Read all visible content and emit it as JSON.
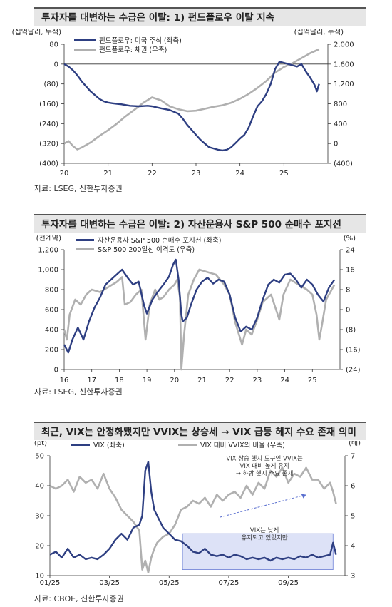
{
  "chart_data": [
    {
      "type": "line",
      "title": "투자자를 대변하는 수급은 이탈: 1) 펀드플로우 이탈 지속",
      "ylabel": "(십억달러, 누적)",
      "y2label": "(십억달러, 누적)",
      "source": "자료: LSEG, 신한투자증권",
      "x_ticks": [
        "20",
        "21",
        "22",
        "23",
        "24",
        "25"
      ],
      "x_range": [
        2020.0,
        2026.0
      ],
      "ylim": [
        -400,
        80
      ],
      "y_ticks": [
        "80",
        "0",
        "(80)",
        "(160)",
        "(240)",
        "(320)",
        "(400)"
      ],
      "y_tick_values": [
        80,
        0,
        -80,
        -160,
        -240,
        -320,
        -400
      ],
      "y2lim": [
        -400,
        2000
      ],
      "y2_ticks": [
        "2,000",
        "1,600",
        "1,200",
        "800",
        "400",
        "0",
        "(400)"
      ],
      "y2_tick_values": [
        2000,
        1600,
        1200,
        800,
        400,
        0,
        -400
      ],
      "legend_position": "top-left",
      "series": [
        {
          "name": "펀드플로우: 미국 주식 (좌축)",
          "axis": "left",
          "color": "#2e3f82",
          "x": [
            2020.0,
            2020.1,
            2020.2,
            2020.3,
            2020.4,
            2020.5,
            2020.6,
            2020.7,
            2020.8,
            2020.9,
            2021.0,
            2021.1,
            2021.2,
            2021.3,
            2021.5,
            2021.7,
            2021.9,
            2022.0,
            2022.2,
            2022.4,
            2022.6,
            2022.7,
            2022.8,
            2022.9,
            2023.0,
            2023.1,
            2023.2,
            2023.3,
            2023.4,
            2023.5,
            2023.6,
            2023.7,
            2023.8,
            2023.9,
            2024.0,
            2024.1,
            2024.2,
            2024.3,
            2024.4,
            2024.5,
            2024.6,
            2024.7,
            2024.8,
            2024.9,
            2025.0,
            2025.1,
            2025.2,
            2025.3,
            2025.4,
            2025.5,
            2025.6,
            2025.7,
            2025.75,
            2025.8
          ],
          "values": [
            0,
            -10,
            -25,
            -45,
            -70,
            -90,
            -110,
            -125,
            -140,
            -150,
            -155,
            -158,
            -160,
            -162,
            -168,
            -170,
            -168,
            -170,
            -178,
            -185,
            -200,
            -220,
            -245,
            -265,
            -285,
            -305,
            -320,
            -335,
            -340,
            -345,
            -348,
            -345,
            -335,
            -318,
            -300,
            -285,
            -255,
            -210,
            -170,
            -150,
            -120,
            -80,
            -20,
            10,
            5,
            0,
            -5,
            -10,
            0,
            -30,
            -55,
            -85,
            -110,
            -80
          ]
        },
        {
          "name": "펀드플로우: 채권 (우축)",
          "axis": "right",
          "color": "#b0b0b0",
          "x": [
            2020.0,
            2020.1,
            2020.2,
            2020.3,
            2020.4,
            2020.6,
            2020.8,
            2021.0,
            2021.2,
            2021.4,
            2021.6,
            2021.8,
            2022.0,
            2022.2,
            2022.4,
            2022.6,
            2022.8,
            2023.0,
            2023.2,
            2023.4,
            2023.6,
            2023.8,
            2024.0,
            2024.2,
            2024.4,
            2024.6,
            2024.8,
            2025.0,
            2025.2,
            2025.4,
            2025.6,
            2025.8
          ],
          "values": [
            0,
            50,
            -50,
            -120,
            -80,
            20,
            150,
            270,
            400,
            550,
            680,
            820,
            930,
            870,
            750,
            690,
            650,
            660,
            700,
            740,
            770,
            820,
            900,
            1000,
            1120,
            1260,
            1430,
            1540,
            1620,
            1720,
            1820,
            1900
          ]
        }
      ]
    },
    {
      "type": "line",
      "title": "투자자를 대변하는 수급은 이탈: 2) 자산운용사 S&P 500 순매수 포지션",
      "ylabel": "(천계약)",
      "y2label": "(%)",
      "source": "자료: LSEG, 신한투자증권",
      "x_ticks": [
        "16",
        "17",
        "18",
        "19",
        "20",
        "21",
        "22",
        "23",
        "24",
        "25"
      ],
      "x_range": [
        2016.0,
        2026.0
      ],
      "ylim": [
        0,
        1200
      ],
      "y_ticks": [
        "1,200",
        "1,000",
        "800",
        "600",
        "400",
        "200",
        "0"
      ],
      "y_tick_values": [
        1200,
        1000,
        800,
        600,
        400,
        200,
        0
      ],
      "y2lim": [
        -24,
        24
      ],
      "y2_ticks": [
        "24",
        "16",
        "8",
        "0",
        "(8)",
        "(16)",
        "(24)"
      ],
      "y2_tick_values": [
        24,
        16,
        8,
        0,
        -8,
        -16,
        -24
      ],
      "legend_position": "top-left",
      "series": [
        {
          "name": "자산운용사 S&P 500 순매수 포지션 (좌축)",
          "axis": "left",
          "color": "#2e3f82",
          "x": [
            2016.0,
            2016.15,
            2016.3,
            2016.5,
            2016.7,
            2016.9,
            2017.1,
            2017.3,
            2017.5,
            2017.7,
            2017.9,
            2018.1,
            2018.3,
            2018.5,
            2018.7,
            2018.9,
            2019.0,
            2019.2,
            2019.4,
            2019.6,
            2019.8,
            2019.95,
            2020.05,
            2020.15,
            2020.25,
            2020.3,
            2020.45,
            2020.6,
            2020.8,
            2021.0,
            2021.2,
            2021.4,
            2021.6,
            2021.8,
            2022.0,
            2022.2,
            2022.4,
            2022.6,
            2022.8,
            2023.0,
            2023.2,
            2023.4,
            2023.6,
            2023.8,
            2024.0,
            2024.2,
            2024.4,
            2024.6,
            2024.8,
            2025.0,
            2025.2,
            2025.4,
            2025.6,
            2025.8
          ],
          "values": [
            250,
            170,
            300,
            420,
            300,
            480,
            620,
            720,
            850,
            900,
            950,
            1000,
            920,
            850,
            880,
            640,
            560,
            700,
            780,
            850,
            930,
            1050,
            1100,
            900,
            550,
            480,
            520,
            650,
            800,
            880,
            920,
            860,
            900,
            880,
            750,
            520,
            380,
            430,
            400,
            520,
            700,
            850,
            900,
            870,
            950,
            960,
            900,
            820,
            900,
            850,
            750,
            680,
            820,
            900
          ]
        },
        {
          "name": "S&P 500 200일선 이격도 (우축)",
          "axis": "right",
          "color": "#b0b0b0",
          "x": [
            2016.0,
            2016.1,
            2016.2,
            2016.4,
            2016.6,
            2016.8,
            2017.0,
            2017.3,
            2017.6,
            2017.9,
            2018.1,
            2018.2,
            2018.4,
            2018.6,
            2018.8,
            2018.95,
            2019.1,
            2019.3,
            2019.45,
            2019.6,
            2019.8,
            2020.0,
            2020.1,
            2020.2,
            2020.25,
            2020.35,
            2020.5,
            2020.7,
            2020.9,
            2021.2,
            2021.5,
            2021.8,
            2022.0,
            2022.2,
            2022.45,
            2022.6,
            2022.8,
            2023.0,
            2023.2,
            2023.5,
            2023.8,
            2023.95,
            2024.2,
            2024.5,
            2024.8,
            2025.0,
            2025.15,
            2025.25,
            2025.35,
            2025.5,
            2025.7,
            2025.8
          ],
          "values": [
            -8,
            -12,
            -2,
            4,
            2,
            6,
            8,
            7,
            9,
            11,
            13,
            2,
            3,
            6,
            8,
            -12,
            2,
            8,
            4,
            5,
            8,
            10,
            12,
            5,
            -24,
            -10,
            6,
            12,
            16,
            15,
            14,
            10,
            6,
            -5,
            -14,
            -8,
            -10,
            -4,
            3,
            6,
            -4,
            6,
            12,
            10,
            8,
            6,
            -2,
            -12,
            -6,
            4,
            8,
            10
          ]
        }
      ]
    },
    {
      "type": "line",
      "title": "최근, VIX는 안정화됐지만 VVIX는 상승세 → VIX 급등 헤지 수요 존재 의미",
      "ylabel": "(pt)",
      "y2label": "(배)",
      "source": "자료: CBOE, 신한투자증권",
      "x_ticks": [
        "01/25",
        "03/25",
        "05/25",
        "07/25",
        "09/25"
      ],
      "x_tick_values": [
        0,
        2,
        4,
        6,
        8
      ],
      "x_range": [
        0,
        9.9
      ],
      "ylim": [
        10,
        50
      ],
      "y_ticks": [
        "50",
        "40",
        "30",
        "20",
        "10"
      ],
      "y_tick_values": [
        50,
        40,
        30,
        20,
        10
      ],
      "y2lim": [
        3,
        7
      ],
      "y2_ticks": [
        "7",
        "6",
        "5",
        "4",
        "3"
      ],
      "y2_tick_values": [
        7,
        6,
        5,
        4,
        3
      ],
      "legend_position": "top",
      "annotations": [
        {
          "text": "VIX 상승 헷지 도구인 VVIX는",
          "x": 7.2,
          "y": 48.5
        },
        {
          "text": "VIX 대비 높게 유지",
          "x": 7.2,
          "y": 46.0
        },
        {
          "text": "→ 하방 헷지 수요 존재",
          "x": 7.2,
          "y": 43.5
        },
        {
          "text": "VIX는 낮게",
          "x": 7.2,
          "y": 24.5
        },
        {
          "text": "유지되고 있었지만",
          "x": 7.2,
          "y": 22.0
        }
      ],
      "series": [
        {
          "name": "VIX (좌축)",
          "axis": "left",
          "color": "#2e3f82",
          "x": [
            0,
            0.2,
            0.4,
            0.6,
            0.8,
            1.0,
            1.2,
            1.4,
            1.6,
            1.8,
            2.0,
            2.2,
            2.4,
            2.6,
            2.8,
            3.0,
            3.1,
            3.2,
            3.3,
            3.4,
            3.5,
            3.6,
            3.8,
            4.0,
            4.2,
            4.4,
            4.6,
            4.8,
            5.0,
            5.2,
            5.4,
            5.6,
            5.8,
            6.0,
            6.2,
            6.4,
            6.6,
            6.8,
            7.0,
            7.2,
            7.4,
            7.6,
            7.8,
            8.0,
            8.2,
            8.4,
            8.6,
            8.8,
            9.0,
            9.2,
            9.4,
            9.5,
            9.6
          ],
          "values": [
            17,
            18,
            16,
            19,
            16,
            17,
            15.5,
            16,
            15.5,
            17,
            19,
            22,
            24,
            22,
            26,
            27,
            30,
            45,
            48,
            38,
            32,
            30,
            26,
            24,
            22,
            21.5,
            20,
            18,
            17.5,
            19,
            17,
            16.5,
            17,
            16,
            17,
            16.5,
            15.5,
            16,
            15.5,
            16,
            15,
            16,
            15.5,
            16,
            15.5,
            16.5,
            16,
            17,
            16,
            16.5,
            17,
            21,
            17
          ]
        },
        {
          "name": "VIX 대비 VVIX의 비율 (우축)",
          "axis": "right",
          "color": "#b0b0b0",
          "x": [
            0,
            0.2,
            0.4,
            0.6,
            0.8,
            1.0,
            1.2,
            1.4,
            1.6,
            1.8,
            2.0,
            2.2,
            2.4,
            2.6,
            2.8,
            3.0,
            3.1,
            3.2,
            3.3,
            3.4,
            3.5,
            3.6,
            3.8,
            4.0,
            4.2,
            4.4,
            4.6,
            4.8,
            5.0,
            5.2,
            5.4,
            5.6,
            5.8,
            6.0,
            6.2,
            6.4,
            6.6,
            6.8,
            7.0,
            7.2,
            7.4,
            7.6,
            7.8,
            8.0,
            8.2,
            8.4,
            8.6,
            8.8,
            9.0,
            9.2,
            9.4,
            9.5,
            9.6
          ],
          "values": [
            6.0,
            5.9,
            6.0,
            6.2,
            5.8,
            6.3,
            6.1,
            6.2,
            5.9,
            6.4,
            5.9,
            5.6,
            5.2,
            5.0,
            4.8,
            4.5,
            3.2,
            3.5,
            3.1,
            3.6,
            3.9,
            4.1,
            4.3,
            4.4,
            4.7,
            5.2,
            5.3,
            5.5,
            5.4,
            5.6,
            5.3,
            5.7,
            5.5,
            5.7,
            5.8,
            5.6,
            6.0,
            5.7,
            6.1,
            5.9,
            6.5,
            6.3,
            6.6,
            6.1,
            6.4,
            6.3,
            6.6,
            6.2,
            6.2,
            5.9,
            6.1,
            5.8,
            5.4
          ]
        }
      ]
    }
  ]
}
